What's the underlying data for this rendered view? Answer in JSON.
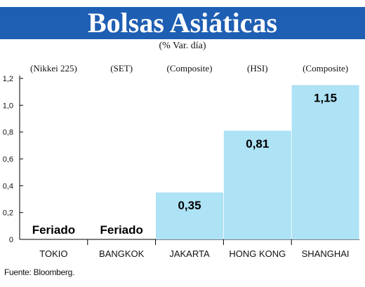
{
  "header": {
    "title": "Bolsas Asiáticas",
    "subtitle": "(% Var. día)"
  },
  "footer": {
    "source": "Fuente: Bloomberg."
  },
  "colors": {
    "banner": "#1f5fb3",
    "bar": "#aee2f5",
    "axis": "#000000"
  },
  "chart_data": {
    "type": "bar",
    "categories": [
      "TOKIO",
      "BANGKOK",
      "JAKARTA",
      "HONG KONG",
      "SHANGHAI"
    ],
    "index_names": [
      "(Nikkei 225)",
      "(SET)",
      "(Composite)",
      "(HSI)",
      "(Composite)"
    ],
    "values": [
      null,
      null,
      0.35,
      0.81,
      1.15
    ],
    "data_labels": [
      "Feriado",
      "Feriado",
      "0,35",
      "0,81",
      "1,15"
    ],
    "yticks": [
      "0",
      "0,2",
      "0,4",
      "0,6",
      "0,8",
      "1,0",
      "1,2"
    ],
    "ylim": [
      0,
      1.2
    ],
    "grid": false,
    "title": "",
    "xlabel": "",
    "ylabel": ""
  }
}
